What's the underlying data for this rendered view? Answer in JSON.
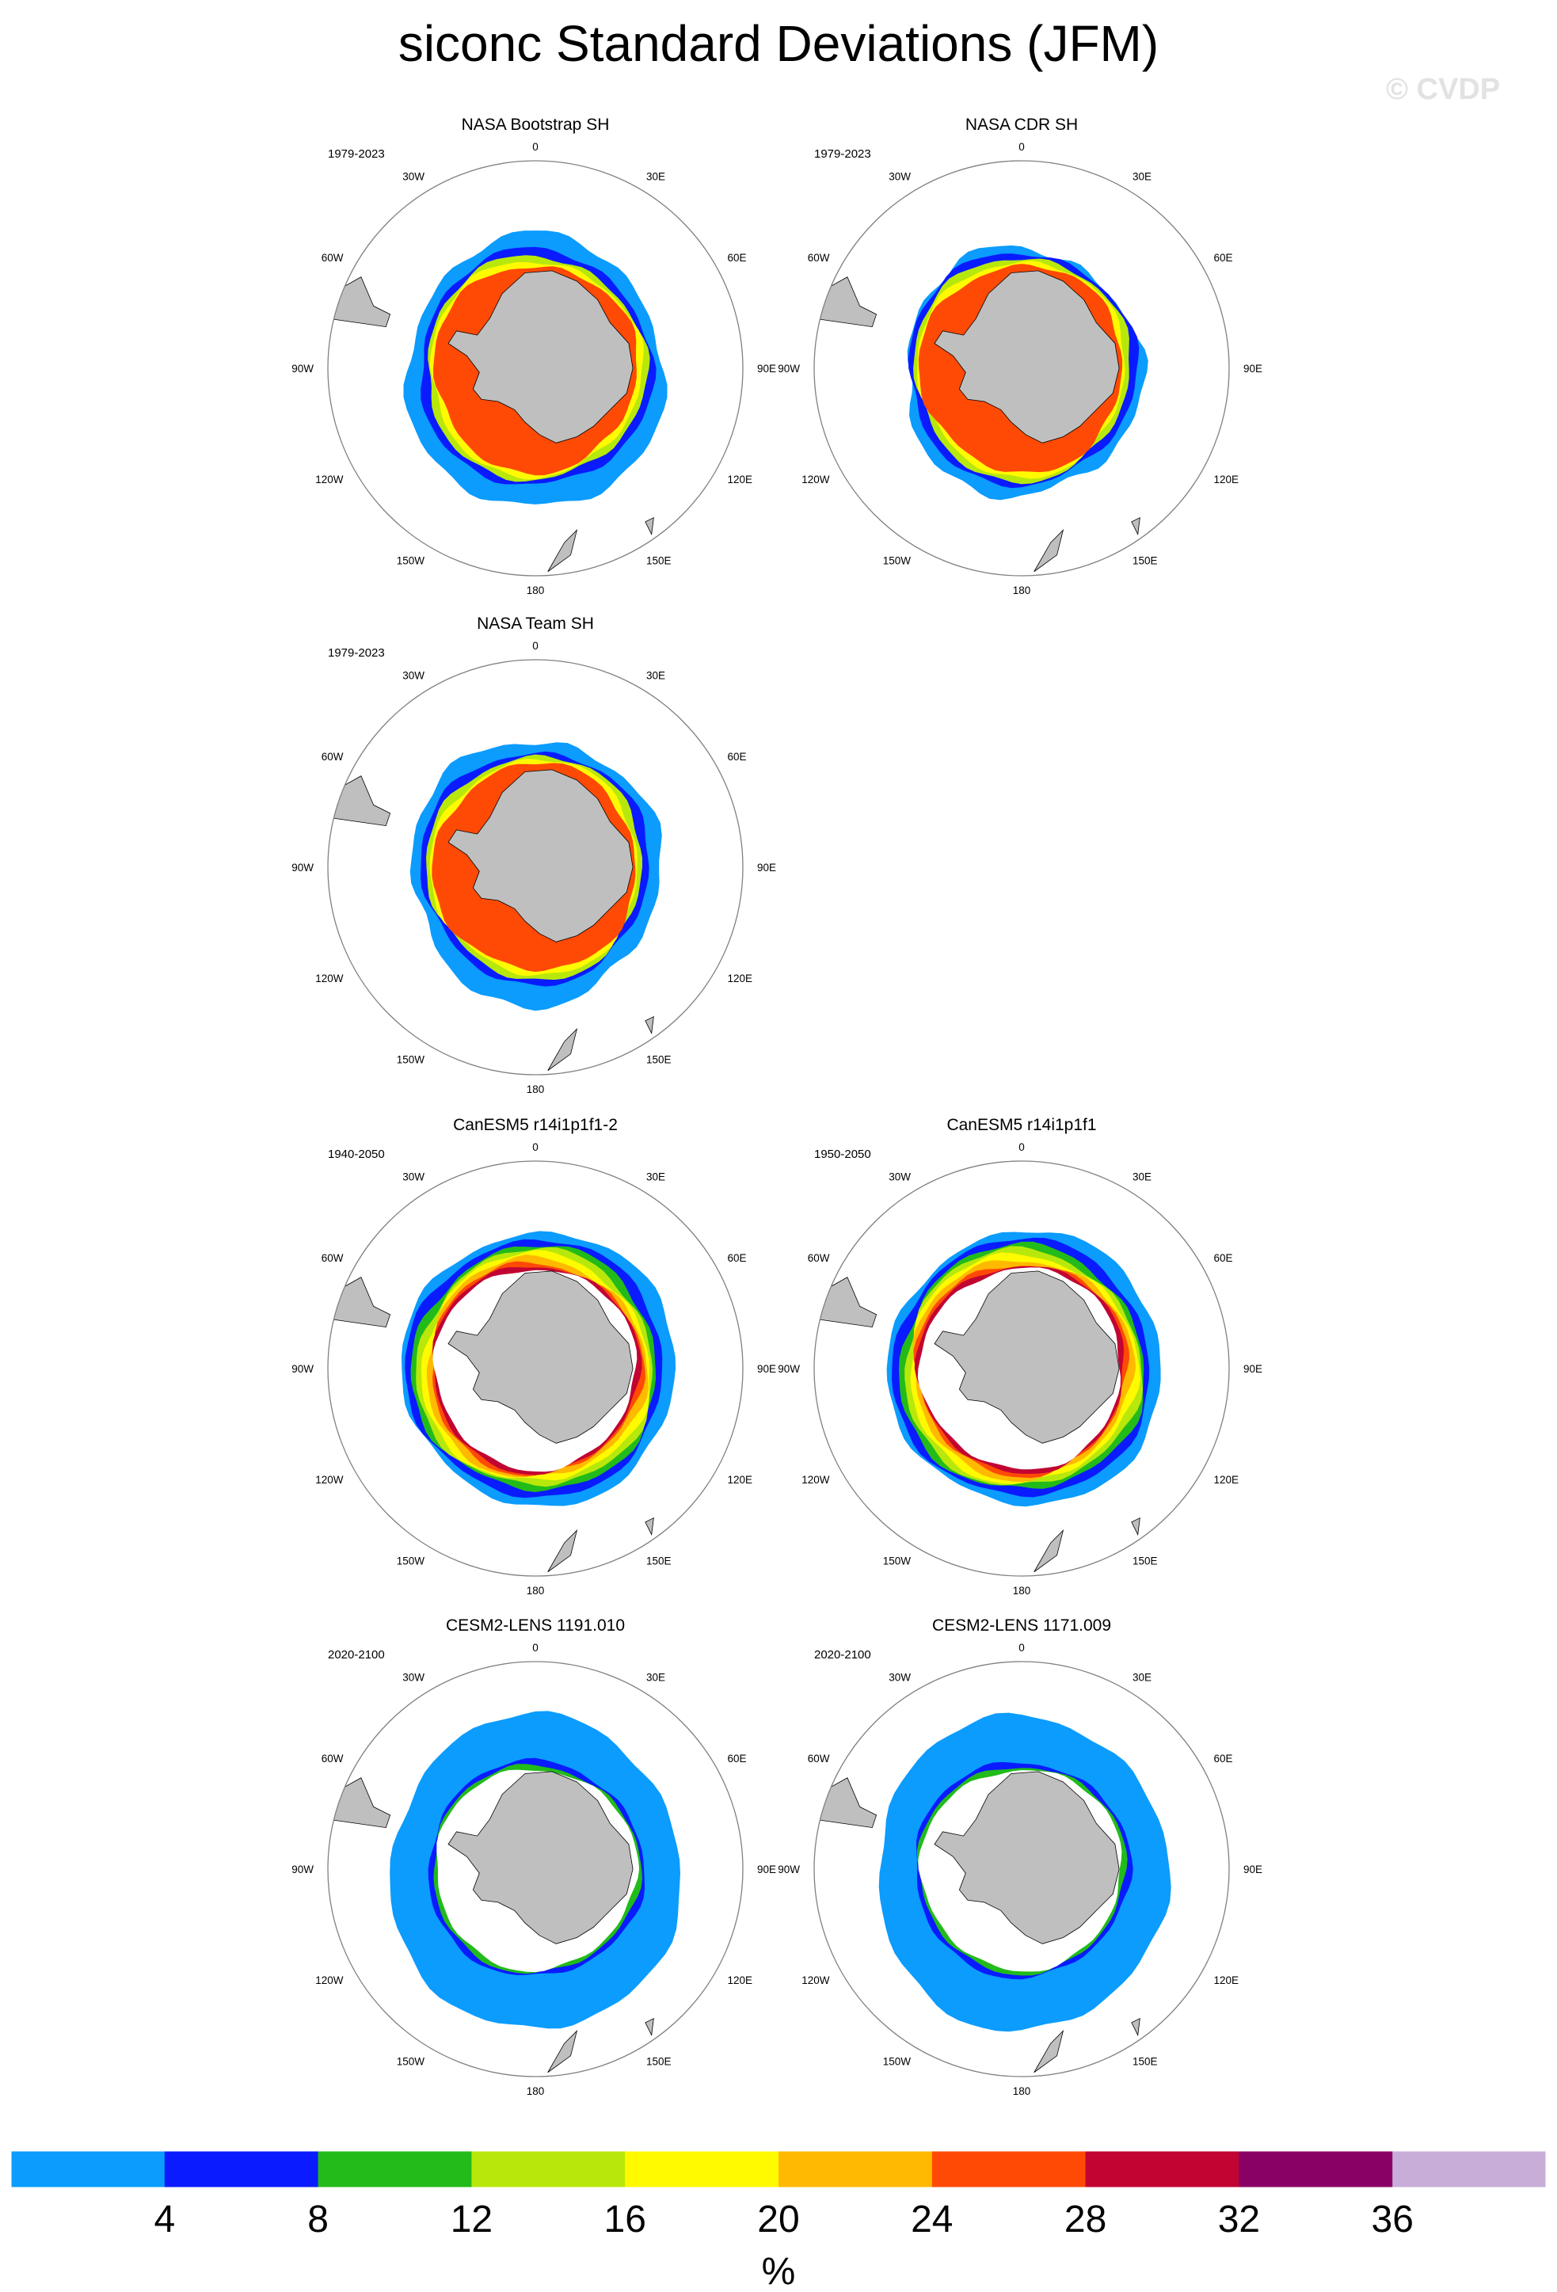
{
  "title": "siconc Standard Deviations (JFM)",
  "watermark": "© CVDP",
  "lon_labels": [
    "0",
    "30E",
    "60E",
    "90E",
    "120E",
    "150E",
    "180",
    "150W",
    "120W",
    "90W",
    "60W",
    "30W"
  ],
  "panels": [
    {
      "title": "NASA Bootstrap SH",
      "period": "1979-2023",
      "field": "obs_bootstrap"
    },
    {
      "title": "NASA CDR SH",
      "period": "1979-2023",
      "field": "obs_cdr"
    },
    {
      "title": "NASA Team SH",
      "period": "1979-2023",
      "field": "obs_team"
    },
    {
      "title": "CanESM5 r14i1p1f1-2",
      "period": "1940-2050",
      "field": "canesm"
    },
    {
      "title": "CanESM5 r14i1p1f1",
      "period": "1950-2050",
      "field": "canesm"
    },
    {
      "title": "CESM2-LENS 1191.010",
      "period": "2020-2100",
      "field": "cesm"
    },
    {
      "title": "CESM2-LENS 1171.009",
      "period": "2020-2100",
      "field": "cesm"
    }
  ],
  "colorbar": {
    "colors": [
      "#0b9cfe",
      "#0a1bff",
      "#22bb1a",
      "#b8e80b",
      "#fffa00",
      "#ffb900",
      "#ff4a06",
      "#c10432",
      "#8a0165",
      "#c8add9"
    ],
    "ticks": [
      "4",
      "8",
      "12",
      "16",
      "20",
      "24",
      "28",
      "32",
      "36"
    ],
    "unit": "%"
  },
  "land_color": "#bfbfbf"
}
